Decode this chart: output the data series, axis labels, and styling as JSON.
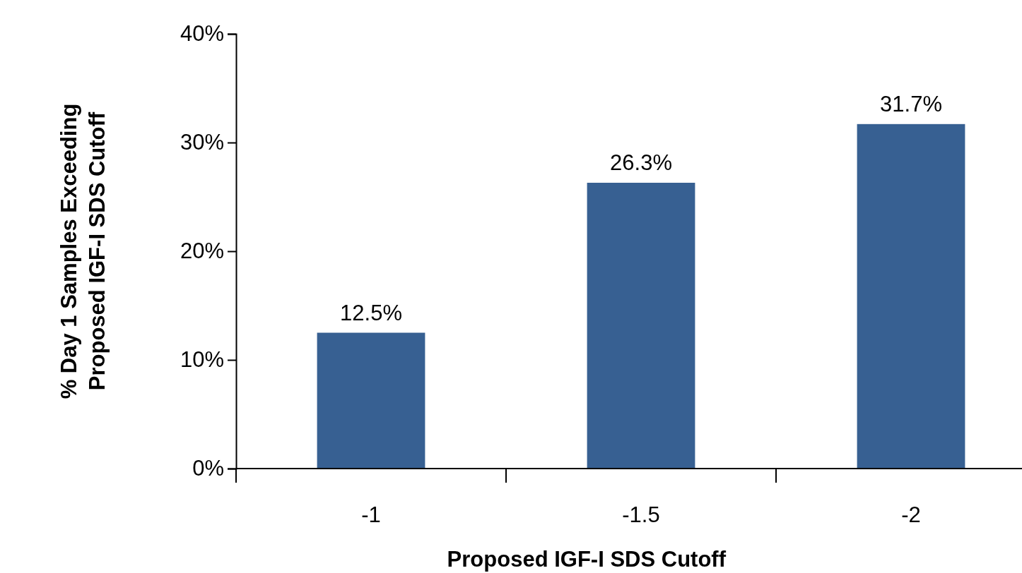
{
  "chart_data": {
    "type": "bar",
    "xlabel": "Proposed IGF-I SDS Cutoff",
    "ylabel": "% Day 1 Samples Exceeding\nProposed IGF-I SDS Cutoff",
    "categories": [
      "-1",
      "-1.5",
      "-2"
    ],
    "values": [
      12.5,
      26.3,
      31.7
    ],
    "value_labels": [
      "12.5%",
      "26.3%",
      "31.7%"
    ],
    "color": "#376092",
    "ylim": [
      0,
      40
    ],
    "yticks": [
      {
        "value": 0,
        "label": "0%"
      },
      {
        "value": 10,
        "label": "10%"
      },
      {
        "value": 20,
        "label": "20%"
      },
      {
        "value": 30,
        "label": "30%"
      },
      {
        "value": 40,
        "label": "40%"
      }
    ],
    "grid": false
  }
}
